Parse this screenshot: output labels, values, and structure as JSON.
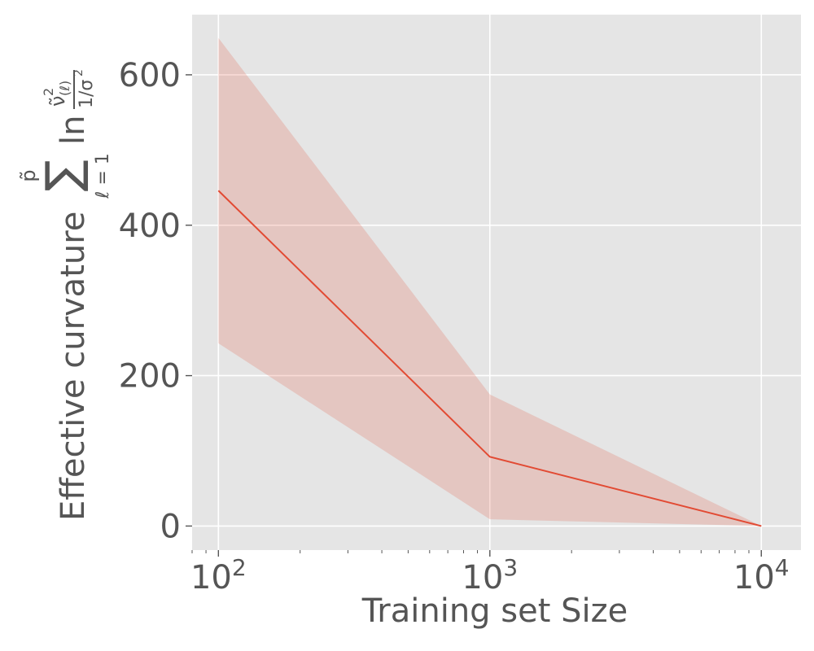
{
  "chart_data": {
    "type": "line",
    "title": "",
    "xlabel": "Training set Size",
    "ylabel_text": "Effective curvature",
    "ylabel_math": {
      "upper": "p̃",
      "operator": "∑",
      "lower": "ℓ = 1",
      "function": "ln",
      "numerator": "ν̃",
      "numerator_sup": "2",
      "numerator_sub": "(ℓ)",
      "denominator": "1/σ",
      "denominator_sup": "2"
    },
    "xscale": "log",
    "xlim": [
      80,
      14000
    ],
    "ylim": [
      -32,
      680
    ],
    "x_ticks": [
      {
        "value": 100,
        "base": "10",
        "exp": "2"
      },
      {
        "value": 1000,
        "base": "10",
        "exp": "3"
      },
      {
        "value": 10000,
        "base": "10",
        "exp": "4"
      }
    ],
    "y_ticks": [
      {
        "value": 0,
        "label": "0"
      },
      {
        "value": 200,
        "label": "200"
      },
      {
        "value": 400,
        "label": "400"
      },
      {
        "value": 600,
        "label": "600"
      }
    ],
    "grid": true,
    "series": [
      {
        "x": [
          100,
          1000,
          10000
        ],
        "y": [
          446,
          92,
          0
        ],
        "band_lower": [
          243,
          9,
          0
        ],
        "band_upper": [
          649,
          175,
          0
        ],
        "color": "#E24A33",
        "band_color": "#E24A33"
      }
    ],
    "colors": {
      "plot_background": "#E5E5E5",
      "grid": "#FFFFFF",
      "text": "#555555"
    }
  }
}
